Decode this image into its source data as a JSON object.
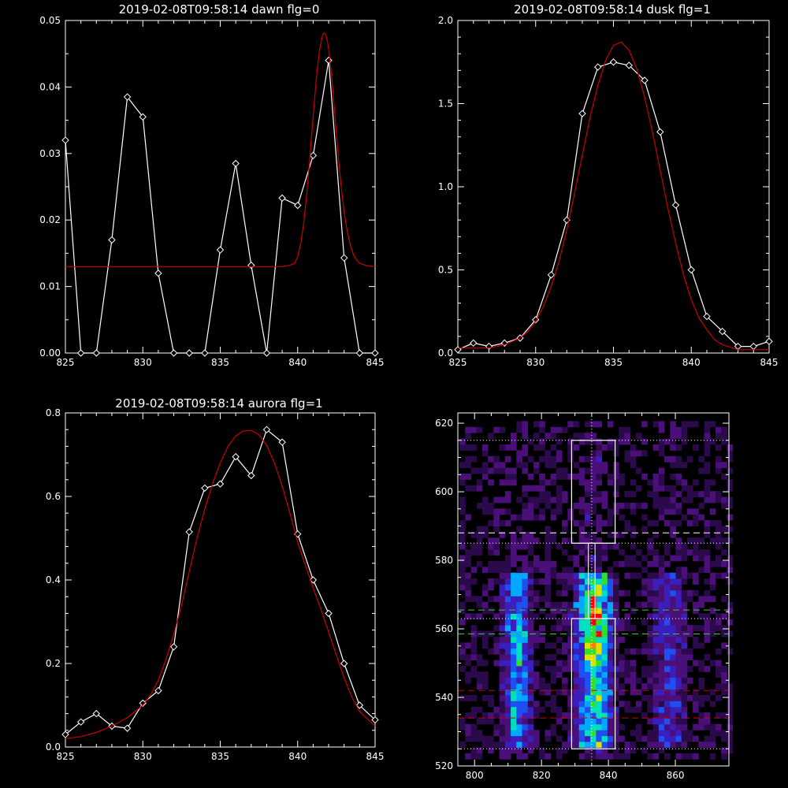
{
  "chart_data": [
    {
      "type": "line",
      "title": "2019-02-08T09:58:14 dawn flg=0",
      "xlim": [
        825,
        845
      ],
      "ylim": [
        0,
        0.05
      ],
      "xticks": [
        "825",
        "830",
        "835",
        "840",
        "845"
      ],
      "yticks": [
        "0.00",
        "0.01",
        "0.02",
        "0.03",
        "0.04",
        "0.05"
      ],
      "series": [
        {
          "color": "#ffffff",
          "markers": "diamond",
          "x": [
            825,
            826,
            827,
            828,
            829,
            830,
            831,
            832,
            833,
            834,
            835,
            836,
            837,
            838,
            839,
            840,
            841,
            842,
            843,
            844,
            845
          ],
          "y": [
            0.032,
            0.0,
            0.0,
            0.017,
            0.0385,
            0.0355,
            0.012,
            0.0,
            0.0,
            0.0,
            0.0155,
            0.0285,
            0.0132,
            0.0,
            0.0233,
            0.0222,
            0.0297,
            0.044,
            0.0143,
            0.0,
            0.0
          ]
        },
        {
          "color": "#cc0000",
          "markers": "none",
          "x": [
            825.0,
            826.0,
            827.0,
            828.0,
            829.0,
            830.0,
            831.0,
            832.0,
            833.0,
            834.0,
            835.0,
            836.0,
            837.0,
            838.0,
            839.0,
            839.5,
            839.8,
            840.0,
            840.2,
            840.4,
            840.6,
            840.8,
            841.0,
            841.2,
            841.4,
            841.6,
            841.7,
            841.8,
            841.9,
            842.0,
            842.2,
            842.4,
            842.6,
            842.8,
            843.0,
            843.2,
            843.4,
            843.6,
            843.8,
            844.0,
            844.5,
            845.0
          ],
          "y": [
            0.013,
            0.013,
            0.013,
            0.013,
            0.013,
            0.013,
            0.013,
            0.013,
            0.013,
            0.013,
            0.013,
            0.013,
            0.013,
            0.013,
            0.013,
            0.0132,
            0.0135,
            0.0145,
            0.0165,
            0.0197,
            0.0242,
            0.0297,
            0.0356,
            0.0411,
            0.0454,
            0.0477,
            0.0481,
            0.048,
            0.0471,
            0.0457,
            0.0415,
            0.0359,
            0.0302,
            0.0252,
            0.0212,
            0.0183,
            0.0162,
            0.0148,
            0.014,
            0.0135,
            0.0131,
            0.013
          ]
        }
      ]
    },
    {
      "type": "line",
      "title": "2019-02-08T09:58:14 dusk flg=1",
      "xlim": [
        825,
        845
      ],
      "ylim": [
        0,
        2.0
      ],
      "xticks": [
        "825",
        "830",
        "835",
        "840",
        "845"
      ],
      "yticks": [
        "0.0",
        "0.5",
        "1.0",
        "1.5",
        "2.0"
      ],
      "series": [
        {
          "color": "#ffffff",
          "markers": "diamond",
          "x": [
            825,
            826,
            827,
            828,
            829,
            830,
            831,
            832,
            833,
            834,
            835,
            836,
            837,
            838,
            839,
            840,
            841,
            842,
            843,
            844,
            845
          ],
          "y": [
            0.02,
            0.06,
            0.04,
            0.06,
            0.09,
            0.2,
            0.47,
            0.8,
            1.44,
            1.72,
            1.75,
            1.73,
            1.64,
            1.33,
            0.89,
            0.5,
            0.22,
            0.13,
            0.04,
            0.04,
            0.07
          ]
        },
        {
          "color": "#cc0000",
          "markers": "none",
          "x": [
            825.0,
            826.0,
            827.0,
            828.0,
            829.0,
            829.5,
            830.0,
            830.5,
            831.0,
            831.5,
            832.0,
            832.5,
            833.0,
            833.5,
            834.0,
            834.5,
            835.0,
            835.5,
            836.0,
            836.5,
            837.0,
            837.5,
            838.0,
            838.5,
            839.0,
            839.5,
            840.0,
            840.5,
            841.0,
            841.5,
            842.0,
            843.0,
            844.0,
            845.0
          ],
          "y": [
            0.03,
            0.03,
            0.03,
            0.05,
            0.09,
            0.13,
            0.19,
            0.28,
            0.4,
            0.55,
            0.74,
            0.96,
            1.19,
            1.42,
            1.61,
            1.76,
            1.85,
            1.87,
            1.82,
            1.71,
            1.54,
            1.33,
            1.1,
            0.87,
            0.66,
            0.47,
            0.32,
            0.21,
            0.14,
            0.08,
            0.05,
            0.02,
            0.02,
            0.02
          ]
        }
      ]
    },
    {
      "type": "line",
      "title": "2019-02-08T09:58:14 aurora flg=1",
      "xlim": [
        825,
        845
      ],
      "ylim": [
        0,
        0.8
      ],
      "xticks": [
        "825",
        "830",
        "835",
        "840",
        "845"
      ],
      "yticks": [
        "0.0",
        "0.2",
        "0.4",
        "0.6",
        "0.8"
      ],
      "series": [
        {
          "color": "#ffffff",
          "markers": "diamond",
          "x": [
            825,
            826,
            827,
            828,
            829,
            830,
            831,
            832,
            833,
            834,
            835,
            836,
            837,
            838,
            839,
            840,
            841,
            842,
            843,
            844,
            845
          ],
          "y": [
            0.03,
            0.06,
            0.08,
            0.05,
            0.045,
            0.105,
            0.135,
            0.24,
            0.515,
            0.62,
            0.63,
            0.695,
            0.65,
            0.76,
            0.73,
            0.51,
            0.4,
            0.32,
            0.2,
            0.1,
            0.065
          ]
        },
        {
          "color": "#cc0000",
          "markers": "none",
          "x": [
            825.0,
            826.0,
            827.0,
            828.0,
            829.0,
            830.0,
            830.5,
            831.0,
            831.5,
            832.0,
            832.5,
            833.0,
            833.5,
            834.0,
            834.5,
            835.0,
            835.5,
            836.0,
            836.5,
            837.0,
            837.5,
            838.0,
            838.5,
            839.0,
            839.5,
            840.0,
            840.5,
            841.0,
            841.5,
            842.0,
            842.5,
            843.0,
            843.5,
            844.0,
            845.0
          ],
          "y": [
            0.02,
            0.025,
            0.035,
            0.05,
            0.07,
            0.1,
            0.125,
            0.16,
            0.21,
            0.27,
            0.34,
            0.42,
            0.5,
            0.57,
            0.63,
            0.68,
            0.72,
            0.745,
            0.757,
            0.758,
            0.748,
            0.722,
            0.68,
            0.625,
            0.56,
            0.49,
            0.435,
            0.38,
            0.33,
            0.275,
            0.22,
            0.165,
            0.12,
            0.085,
            0.05
          ]
        }
      ]
    },
    {
      "type": "heatmap",
      "title": "",
      "xlim": [
        795,
        876
      ],
      "ylim": [
        520,
        623
      ],
      "xticks": [
        "800",
        "820",
        "840",
        "860"
      ],
      "yticks": [
        "520",
        "540",
        "560",
        "580",
        "600",
        "620"
      ],
      "colormap": [
        "#000000",
        "#2a0a4a",
        "#4b0f7a",
        "#3a1fbf",
        "#1f4ff0",
        "#00a8ff",
        "#00e0c0",
        "#30e030",
        "#e0e000",
        "#ff8000",
        "#ff0000"
      ],
      "seed": 20190208,
      "band_centers_x": [
        812,
        835,
        857
      ],
      "band_intensity": [
        0.55,
        1.0,
        0.3
      ],
      "band_halfwidth": [
        4,
        5,
        5
      ],
      "band_y_range": [
        525,
        575
      ],
      "peak_y": 562,
      "dashed_lines": [
        {
          "y": 588,
          "color": "#ffffff"
        },
        {
          "y": 565.5,
          "color": "#33cc33"
        },
        {
          "y": 558.5,
          "color": "#33cc33"
        },
        {
          "y": 542,
          "color": "#cc0000"
        },
        {
          "y": 534,
          "color": "#cc0000"
        }
      ],
      "dotted_lines": [
        {
          "y": 615,
          "orient": "h"
        },
        {
          "y": 585,
          "orient": "h"
        },
        {
          "y": 563,
          "orient": "h"
        },
        {
          "y": 525,
          "orient": "h"
        },
        {
          "x": 835,
          "orient": "v"
        }
      ],
      "boxes": [
        {
          "x0": 829,
          "x1": 842,
          "y0": 585,
          "y1": 615
        },
        {
          "x0": 829,
          "x1": 842,
          "y0": 525,
          "y1": 563
        }
      ],
      "connector_x": [
        834,
        836
      ],
      "connector_y": [
        563,
        585
      ]
    }
  ]
}
